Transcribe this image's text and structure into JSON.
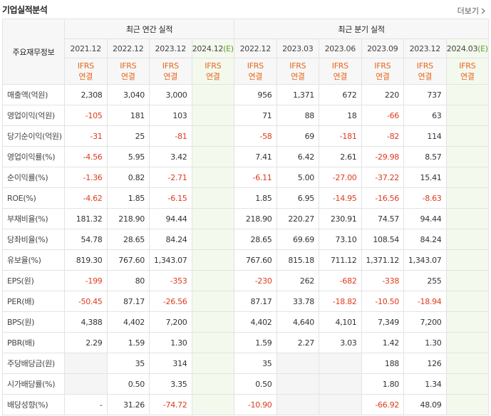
{
  "header": {
    "title": "기업실적분석",
    "more": "더보기"
  },
  "table": {
    "corner": "주요재무정보",
    "annual": {
      "label": "최근 연간 실적",
      "columns": [
        {
          "period": [
            "2021.12"
          ],
          "basis": [
            "IFRS",
            "연결"
          ]
        },
        {
          "period": [
            "2022.12"
          ],
          "basis": [
            "IFRS",
            "연결"
          ]
        },
        {
          "period": [
            "2023.12"
          ],
          "basis": [
            "IFRS",
            "연결"
          ]
        },
        {
          "period": [
            "2024.12",
            "(E)"
          ],
          "basis": [
            "IFRS",
            "연결"
          ]
        }
      ]
    },
    "quarterly": {
      "label": "최근 분기 실적",
      "columns": [
        {
          "period": [
            "2022.12"
          ],
          "basis": [
            "IFRS",
            "연결"
          ]
        },
        {
          "period": [
            "2023.03"
          ],
          "basis": [
            "IFRS",
            "연결"
          ]
        },
        {
          "period": [
            "2023.06"
          ],
          "basis": [
            "IFRS",
            "연결"
          ]
        },
        {
          "period": [
            "2023.09"
          ],
          "basis": [
            "IFRS",
            "연결"
          ]
        },
        {
          "period": [
            "2023.12"
          ],
          "basis": [
            "IFRS",
            "연결"
          ]
        },
        {
          "period": [
            "2024.03",
            "(E)"
          ],
          "basis": [
            "IFRS",
            "연결"
          ]
        }
      ]
    },
    "row_groups": [
      [
        {
          "label": "매출액(억원)",
          "annual": [
            "2,308",
            "3,040",
            "3,000",
            null
          ],
          "quarterly": [
            "956",
            "1,371",
            "672",
            "220",
            "737",
            null
          ]
        },
        {
          "label": "영업이익(억원)",
          "annual": [
            "-105",
            "181",
            "103",
            null
          ],
          "quarterly": [
            "71",
            "88",
            "18",
            "-66",
            "63",
            null
          ]
        },
        {
          "label": "당기순이익(억원)",
          "annual": [
            "-31",
            "25",
            "-81",
            null
          ],
          "quarterly": [
            "-58",
            "69",
            "-181",
            "-82",
            "114",
            null
          ]
        }
      ],
      [
        {
          "label": "영업이익률(%)",
          "annual": [
            "-4.56",
            "5.95",
            "3.42",
            null
          ],
          "quarterly": [
            "7.41",
            "6.42",
            "2.61",
            "-29.98",
            "8.57",
            null
          ]
        },
        {
          "label": "순이익률(%)",
          "annual": [
            "-1.36",
            "0.82",
            "-2.71",
            null
          ],
          "quarterly": [
            "-6.11",
            "5.00",
            "-27.00",
            "-37.22",
            "15.41",
            null
          ]
        },
        {
          "label": "ROE(%)",
          "annual": [
            "-4.62",
            "1.85",
            "-6.15",
            null
          ],
          "quarterly": [
            "1.85",
            "6.95",
            "-14.95",
            "-16.56",
            "-8.63",
            null
          ]
        }
      ],
      [
        {
          "label": "부채비율(%)",
          "annual": [
            "181.32",
            "218.90",
            "94.44",
            null
          ],
          "quarterly": [
            "218.90",
            "220.27",
            "230.91",
            "74.57",
            "94.44",
            null
          ]
        },
        {
          "label": "당좌비율(%)",
          "annual": [
            "54.78",
            "28.65",
            "84.24",
            null
          ],
          "quarterly": [
            "28.65",
            "69.69",
            "73.10",
            "108.54",
            "84.24",
            null
          ]
        },
        {
          "label": "유보율(%)",
          "annual": [
            "819.30",
            "767.60",
            "1,343.07",
            null
          ],
          "quarterly": [
            "767.60",
            "815.18",
            "711.12",
            "1,371.12",
            "1,343.07",
            null
          ]
        }
      ],
      [
        {
          "label": "EPS(원)",
          "annual": [
            "-199",
            "80",
            "-353",
            null
          ],
          "quarterly": [
            "-230",
            "262",
            "-682",
            "-338",
            "255",
            null
          ]
        },
        {
          "label": "PER(배)",
          "annual": [
            "-50.45",
            "87.17",
            "-26.56",
            null
          ],
          "quarterly": [
            "87.17",
            "33.78",
            "-18.82",
            "-10.50",
            "-18.94",
            null
          ]
        },
        {
          "label": "BPS(원)",
          "annual": [
            "4,388",
            "4,402",
            "7,200",
            null
          ],
          "quarterly": [
            "4,402",
            "4,640",
            "4,101",
            "7,349",
            "7,200",
            null
          ]
        },
        {
          "label": "PBR(배)",
          "annual": [
            "2.29",
            "1.59",
            "1.30",
            null
          ],
          "quarterly": [
            "1.59",
            "2.27",
            "3.03",
            "1.42",
            "1.30",
            null
          ]
        }
      ],
      [
        {
          "label": "주당배당금(원)",
          "annual": [
            null,
            "35",
            "314",
            null
          ],
          "quarterly": [
            "35",
            null,
            null,
            "188",
            "126",
            null
          ]
        },
        {
          "label": "시가배당률(%)",
          "annual": [
            null,
            "0.50",
            "3.35",
            null
          ],
          "quarterly": [
            "0.50",
            null,
            null,
            "1.80",
            "1.34",
            null
          ]
        },
        {
          "label": "배당성향(%)",
          "annual": [
            "-",
            "31.26",
            "-74.72",
            null
          ],
          "quarterly": [
            "-10.90",
            null,
            null,
            "-66.92",
            "48.09",
            null
          ]
        }
      ]
    ]
  }
}
